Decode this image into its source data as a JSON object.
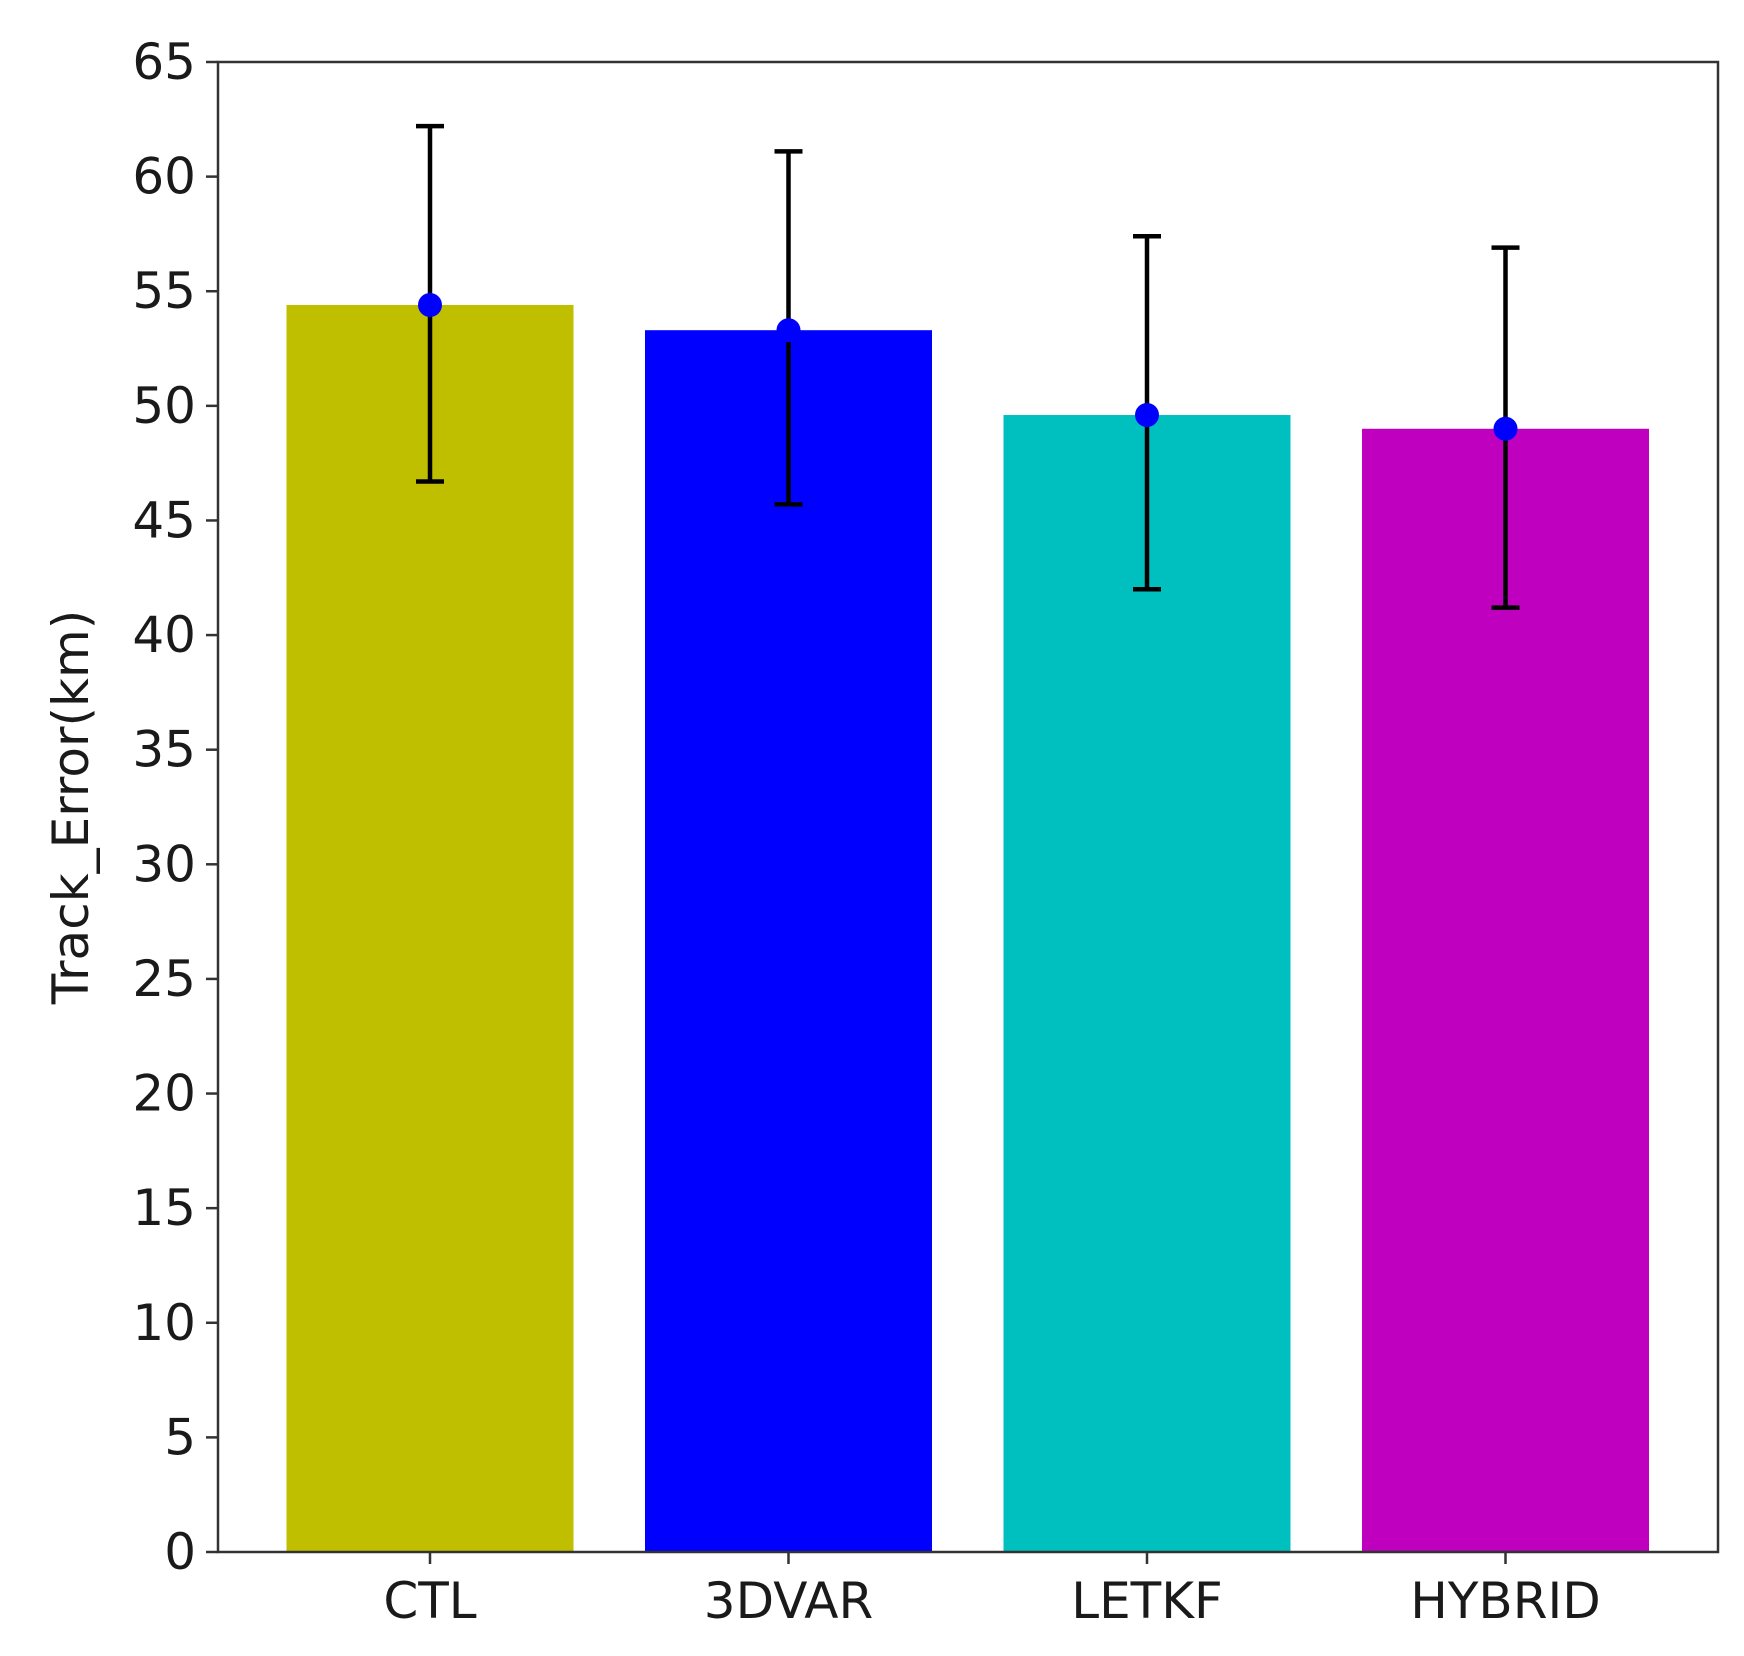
{
  "chart_data": {
    "type": "bar",
    "title": "",
    "xlabel": "",
    "ylabel": "Track_Error(km)",
    "ylim": [
      0,
      65
    ],
    "yticks": [
      0,
      5,
      10,
      15,
      20,
      25,
      30,
      35,
      40,
      45,
      50,
      55,
      60,
      65
    ],
    "grid": false,
    "categories": [
      "CTL",
      "3DVAR",
      "LETKF",
      "HYBRID"
    ],
    "values": [
      54.4,
      53.3,
      49.6,
      49.0
    ],
    "error_low": [
      46.7,
      45.7,
      42.0,
      41.2
    ],
    "error_high": [
      62.2,
      61.1,
      57.4,
      56.9
    ],
    "colors": [
      "#bfbf00",
      "#0000ff",
      "#00bfbf",
      "#bf00bf"
    ],
    "marker_color": "#0000ff",
    "errorbar_color": "#000000"
  }
}
